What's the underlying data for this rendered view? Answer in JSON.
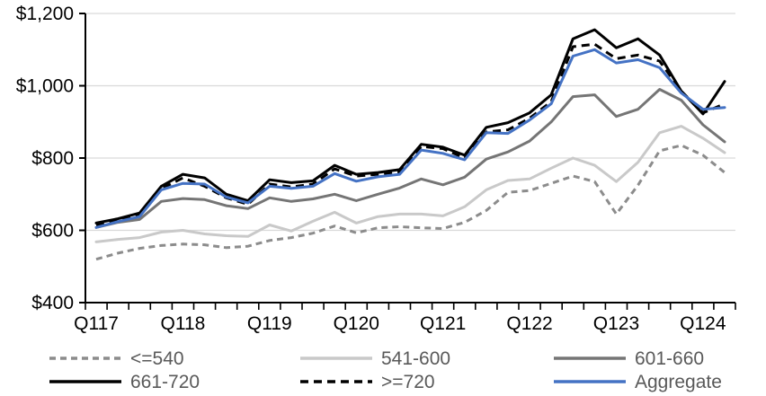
{
  "chart_data": {
    "type": "line",
    "title": "",
    "xlabel": "",
    "ylabel": "",
    "grid": true,
    "legend_position": "bottom",
    "ylim": [
      400,
      1200
    ],
    "y_tick_step": 200,
    "y_tick_labels": [
      "$1,200",
      "$1,000",
      "$800",
      "$600",
      "$400"
    ],
    "x_tick_labels_shown": [
      "Q117",
      "Q118",
      "Q119",
      "Q120",
      "Q121",
      "Q122",
      "Q123",
      "Q124"
    ],
    "x_label_every": 4,
    "categories": [
      "Q117",
      "Q217",
      "Q317",
      "Q417",
      "Q118",
      "Q218",
      "Q318",
      "Q418",
      "Q119",
      "Q219",
      "Q319",
      "Q419",
      "Q120",
      "Q220",
      "Q320",
      "Q420",
      "Q121",
      "Q221",
      "Q321",
      "Q421",
      "Q122",
      "Q222",
      "Q322",
      "Q422",
      "Q123",
      "Q223",
      "Q323",
      "Q423",
      "Q124",
      "Q224"
    ],
    "series": [
      {
        "name": "<=540",
        "color": "#8c8c8c",
        "dash": "7 5",
        "width": 3,
        "values": [
          520,
          537,
          550,
          558,
          562,
          560,
          552,
          556,
          572,
          580,
          592,
          612,
          593,
          607,
          610,
          607,
          605,
          622,
          655,
          705,
          710,
          730,
          750,
          735,
          645,
          725,
          820,
          835,
          808,
          760
        ]
      },
      {
        "name": "541-600",
        "color": "#c9c9c9",
        "dash": null,
        "width": 3,
        "values": [
          568,
          575,
          580,
          595,
          600,
          590,
          585,
          583,
          615,
          598,
          625,
          650,
          620,
          638,
          645,
          645,
          640,
          665,
          712,
          738,
          742,
          772,
          800,
          780,
          735,
          788,
          870,
          888,
          855,
          815
        ]
      },
      {
        "name": "601-660",
        "color": "#757575",
        "dash": null,
        "width": 3,
        "values": [
          608,
          622,
          630,
          680,
          688,
          685,
          668,
          660,
          690,
          680,
          687,
          700,
          682,
          700,
          717,
          742,
          726,
          747,
          797,
          817,
          847,
          900,
          970,
          975,
          915,
          935,
          990,
          960,
          892,
          845
        ]
      },
      {
        "name": "661-720",
        "color": "#000000",
        "dash": null,
        "width": 3,
        "values": [
          620,
          632,
          648,
          722,
          755,
          745,
          700,
          682,
          740,
          732,
          737,
          780,
          755,
          760,
          768,
          838,
          830,
          808,
          885,
          898,
          925,
          975,
          1130,
          1155,
          1105,
          1130,
          1085,
          985,
          922,
          1012
        ]
      },
      {
        "name": ">=720",
        "color": "#000000",
        "dash": "9 6",
        "width": 3,
        "values": [
          615,
          628,
          643,
          715,
          745,
          722,
          690,
          672,
          728,
          720,
          728,
          770,
          750,
          755,
          762,
          832,
          826,
          800,
          872,
          878,
          910,
          956,
          1108,
          1115,
          1075,
          1085,
          1068,
          985,
          925,
          950
        ]
      },
      {
        "name": "Aggregate",
        "color": "#4472c4",
        "dash": null,
        "width": 3,
        "values": [
          608,
          624,
          638,
          712,
          730,
          728,
          692,
          676,
          722,
          716,
          722,
          757,
          736,
          748,
          755,
          822,
          813,
          795,
          870,
          868,
          905,
          950,
          1082,
          1100,
          1063,
          1072,
          1050,
          980,
          935,
          940
        ]
      }
    ],
    "legend": {
      "rows": [
        [
          "<=540",
          "541-600",
          "601-660"
        ],
        [
          "661-720",
          ">=720",
          "Aggregate"
        ]
      ],
      "text_color": "#595959"
    },
    "style": {
      "gridline_color": "#d9d9d9",
      "axis_color": "#000000",
      "axis_label_color": "#000000"
    }
  }
}
